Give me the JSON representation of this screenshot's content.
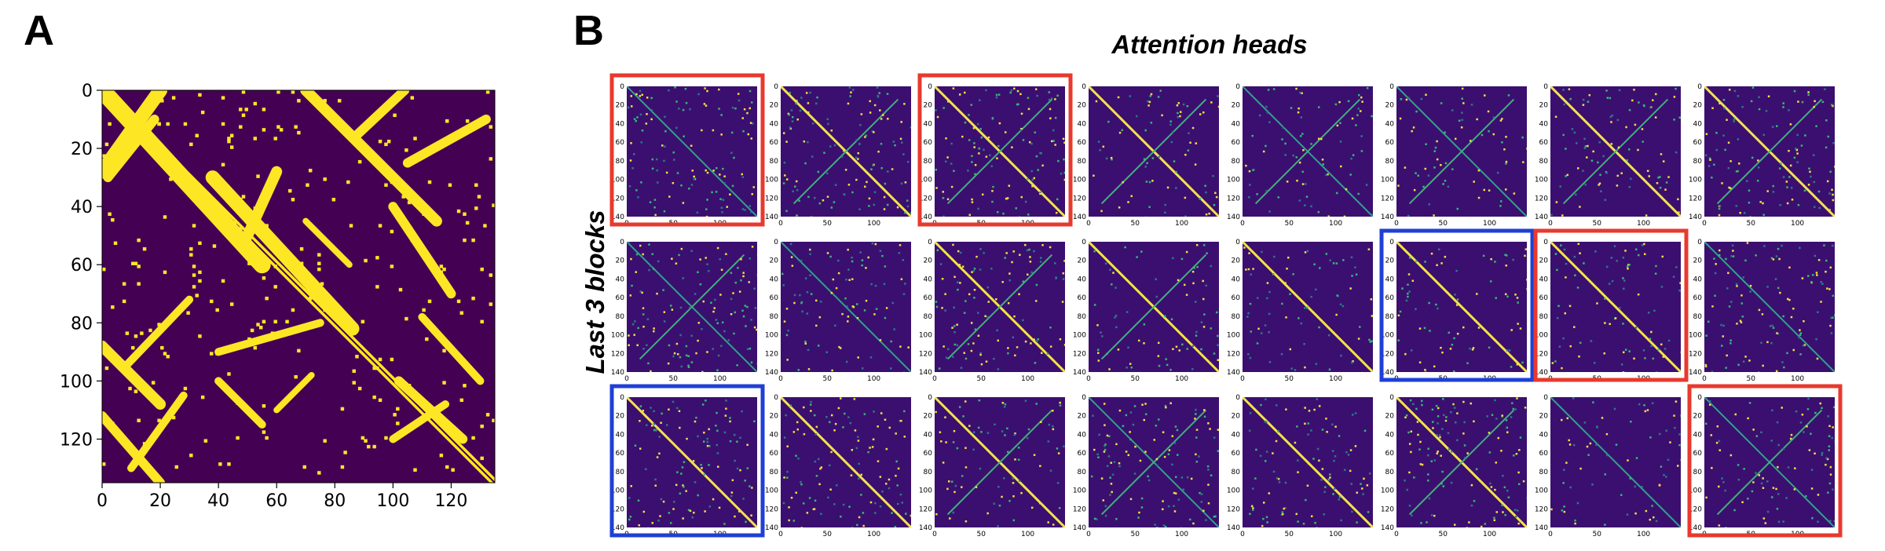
{
  "panel_a": {
    "letter": "A",
    "x_ticks": [
      "0",
      "20",
      "40",
      "60",
      "80",
      "100",
      "120"
    ],
    "y_ticks": [
      "0",
      "20",
      "40",
      "60",
      "80",
      "100",
      "120"
    ],
    "colors": {
      "background": "#440154",
      "contact": "#fde725"
    },
    "description_type": "contact-map"
  },
  "panel_b": {
    "letter": "B",
    "title": "Attention heads",
    "ylabel": "Last 3 blocks",
    "thumb_x_ticks": [
      "0",
      "50",
      "100"
    ],
    "thumb_y_ticks": [
      "0",
      "20",
      "40",
      "60",
      "80",
      "100",
      "120",
      "140"
    ],
    "grid": {
      "rows": 3,
      "cols": 8
    },
    "highlights": [
      {
        "row": 0,
        "col": 0,
        "color": "red"
      },
      {
        "row": 0,
        "col": 2,
        "color": "red"
      },
      {
        "row": 1,
        "col": 5,
        "color": "blue"
      },
      {
        "row": 1,
        "col": 6,
        "color": "red"
      },
      {
        "row": 2,
        "col": 0,
        "color": "blue"
      },
      {
        "row": 2,
        "col": 7,
        "color": "red"
      }
    ],
    "border_colors": {
      "red": "#e8392e",
      "blue": "#1f3fd6"
    }
  }
}
